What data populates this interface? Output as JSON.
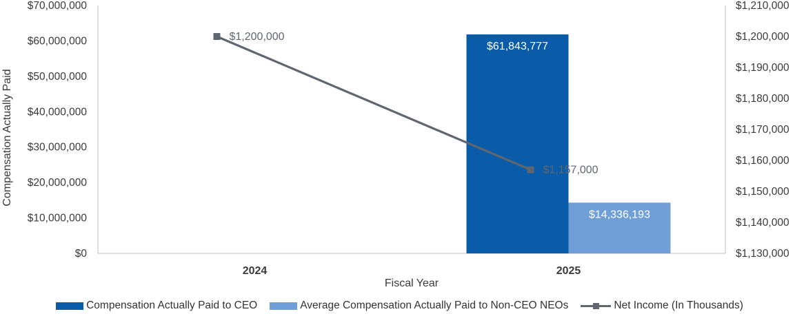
{
  "chart_data": {
    "type": "bar",
    "categories": [
      "2024",
      "2025"
    ],
    "xlabel": "Fiscal Year",
    "ylabel": "Compensation Actually Paid",
    "ylim": [
      0,
      70000000
    ],
    "y2lim": [
      1130000,
      1210000
    ],
    "y_ticks": [
      "$0",
      "$10,000,000",
      "$20,000,000",
      "$30,000,000",
      "$40,000,000",
      "$50,000,000",
      "$60,000,000",
      "$70,000,000"
    ],
    "y2_ticks": [
      "$1,130,000",
      "$1,140,000",
      "$1,150,000",
      "$1,160,000",
      "$1,170,000",
      "$1,180,000",
      "$1,190,000",
      "$1,200,000",
      "$1,210,000"
    ],
    "grid": false,
    "legend_position": "bottom",
    "series": [
      {
        "name": "Compensation Actually Paid to CEO",
        "type": "bar",
        "axis": "left",
        "color": "#0a5ca8",
        "values": [
          null,
          61843777
        ],
        "labels": [
          "",
          "$61,843,777"
        ]
      },
      {
        "name": "Average Compensation Actually Paid to Non-CEO NEOs",
        "type": "bar",
        "axis": "left",
        "color": "#6f9fd6",
        "values": [
          null,
          14336193
        ],
        "labels": [
          "",
          "$14,336,193"
        ]
      },
      {
        "name": "Net Income (In Thousands)",
        "type": "line",
        "axis": "right",
        "color": "#5f6670",
        "values": [
          1200000,
          1157000
        ],
        "labels": [
          "$1,200,000",
          "$1,157,000"
        ]
      }
    ]
  }
}
